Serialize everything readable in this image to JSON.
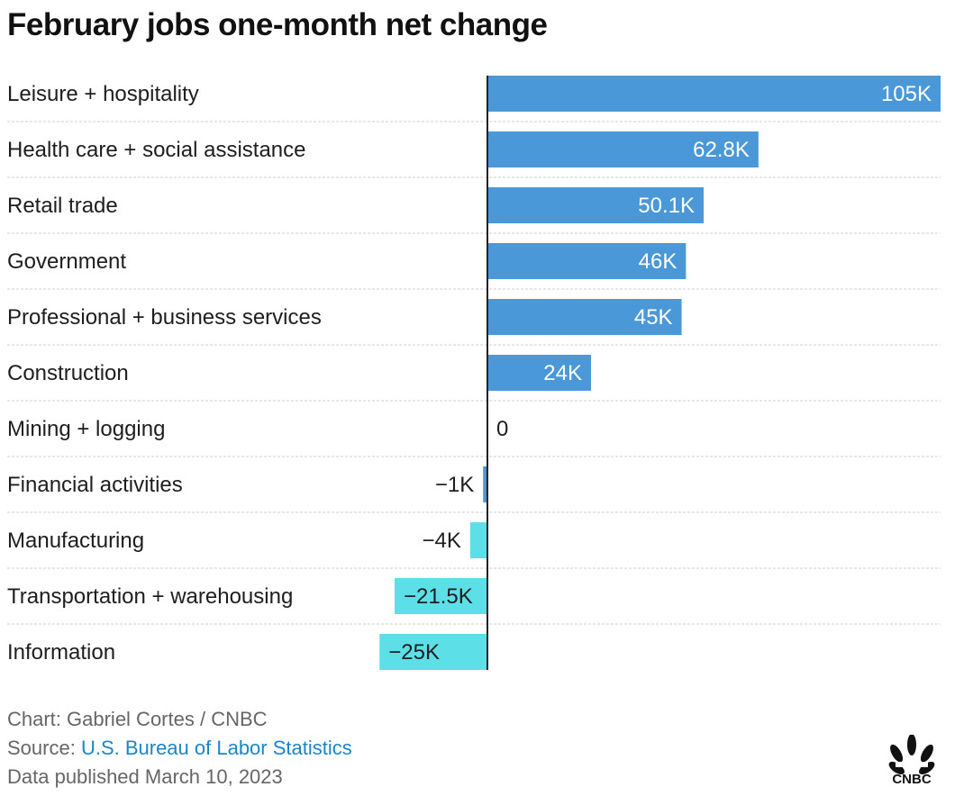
{
  "title": "February jobs one-month net change",
  "footer": {
    "credit": "Chart: Gabriel Cortes / CNBC",
    "source_prefix": "Source: ",
    "source_link": "U.S. Bureau of Labor Statistics",
    "published": "Data published March 10, 2023"
  },
  "logo": {
    "text": "CNBC",
    "icon": "nbc-peacock-icon"
  },
  "colors": {
    "positive": "#4a98d8",
    "negative": "#5ddfe8",
    "financial": "#4a98d8",
    "axis": "#222222",
    "grid": "#cfcfcf",
    "link": "#1a86c8"
  },
  "chart_data": {
    "type": "bar",
    "orientation": "horizontal",
    "categories": [
      "Leisure + hospitality",
      "Health care + social assistance",
      "Retail trade",
      "Government",
      "Professional + business services",
      "Construction",
      "Mining + logging",
      "Financial activities",
      "Manufacturing",
      "Transportation + warehousing",
      "Information"
    ],
    "values": [
      105000,
      62800,
      50100,
      46000,
      45000,
      24000,
      0,
      -1000,
      -4000,
      -21500,
      -25000
    ],
    "labels": [
      "105K",
      "62.8K",
      "50.1K",
      "46K",
      "45K",
      "24K",
      "0",
      "−1K",
      "−4K",
      "−21.5K",
      "−25K"
    ],
    "xlim": [
      -25000,
      105000
    ],
    "grid": "horizontal separators between rows",
    "legend": "none"
  }
}
